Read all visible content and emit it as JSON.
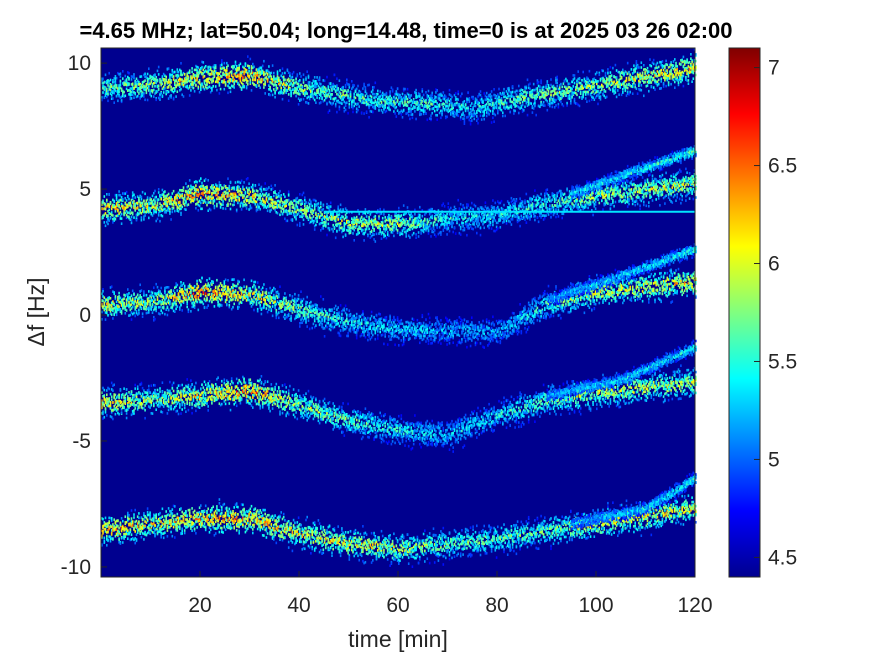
{
  "chart_data": {
    "type": "heatmap",
    "title": "=4.65 MHz;  lat=50.04; long=14.48, time=0 is at 2025 03 26 02:00",
    "xlabel": "time [min]",
    "ylabel": "Δf [Hz]",
    "xlim": [
      0,
      120
    ],
    "ylim": [
      -10.4,
      10.6
    ],
    "x_ticks": [
      20,
      40,
      60,
      80,
      100,
      120
    ],
    "y_ticks": [
      -10,
      -5,
      0,
      5,
      10
    ],
    "y_tick_labels": [
      "-10",
      "-5",
      "0",
      "5",
      "10"
    ],
    "colorbar": {
      "range": [
        4.4,
        7.1
      ],
      "ticks": [
        4.5,
        5,
        5.5,
        6,
        6.5,
        7
      ],
      "tick_labels": [
        "4.5",
        "5",
        "5.5",
        "6",
        "6.5",
        "7"
      ],
      "colormap": "jet"
    },
    "background_color": "#00008f",
    "grid": false,
    "traces": [
      {
        "name": "",
        "t": [
          0,
          10,
          20,
          30,
          40,
          55,
          65,
          75,
          85,
          100,
          120
        ],
        "f": [
          9.0,
          9.1,
          9.4,
          9.5,
          9.0,
          8.5,
          8.4,
          8.2,
          8.6,
          9.1,
          9.8
        ],
        "strength": [
          0.55,
          0.6,
          0.75,
          0.8,
          0.6,
          0.5,
          0.5,
          0.45,
          0.55,
          0.6,
          0.75
        ]
      },
      {
        "name": "",
        "t": [
          0,
          10,
          20,
          30,
          40,
          50,
          60,
          70,
          80,
          90,
          100,
          120
        ],
        "f": [
          4.2,
          4.3,
          4.8,
          4.7,
          4.2,
          3.6,
          3.6,
          3.8,
          3.9,
          4.4,
          4.7,
          5.2
        ],
        "strength": [
          0.75,
          0.65,
          0.85,
          0.7,
          0.6,
          0.65,
          0.6,
          0.45,
          0.45,
          0.5,
          0.6,
          0.65
        ]
      },
      {
        "name": "",
        "t": [
          0,
          10,
          20,
          30,
          40,
          50,
          60,
          80,
          90,
          100,
          120
        ],
        "f": [
          0.4,
          0.5,
          0.9,
          0.8,
          0.2,
          -0.3,
          -0.6,
          -0.7,
          0.4,
          0.9,
          1.3
        ],
        "strength": [
          0.7,
          0.6,
          0.85,
          0.7,
          0.55,
          0.45,
          0.4,
          0.35,
          0.5,
          0.65,
          0.75
        ]
      },
      {
        "name": "",
        "t": [
          0,
          10,
          20,
          30,
          40,
          50,
          60,
          70,
          80,
          90,
          100,
          120
        ],
        "f": [
          -3.5,
          -3.4,
          -3.2,
          -3.0,
          -3.6,
          -4.2,
          -4.6,
          -4.8,
          -4.0,
          -3.4,
          -3.1,
          -2.7
        ],
        "strength": [
          0.75,
          0.6,
          0.7,
          0.85,
          0.6,
          0.55,
          0.45,
          0.4,
          0.45,
          0.55,
          0.65,
          0.65
        ]
      },
      {
        "name": "",
        "t": [
          0,
          10,
          20,
          30,
          40,
          50,
          60,
          70,
          80,
          90,
          100,
          120
        ],
        "f": [
          -8.6,
          -8.3,
          -8.1,
          -8.1,
          -8.7,
          -9.1,
          -9.3,
          -9.1,
          -8.9,
          -8.6,
          -8.3,
          -7.7
        ],
        "strength": [
          0.8,
          0.7,
          0.75,
          0.8,
          0.7,
          0.7,
          0.65,
          0.55,
          0.55,
          0.55,
          0.7,
          0.7
        ]
      }
    ],
    "secondary_traces": [
      {
        "t": [
          95,
          105,
          120
        ],
        "f": [
          4.8,
          5.5,
          6.5
        ],
        "strength": [
          0.4,
          0.45,
          0.5
        ]
      },
      {
        "t": [
          90,
          100,
          120
        ],
        "f": [
          0.6,
          1.2,
          2.6
        ],
        "strength": [
          0.35,
          0.4,
          0.45
        ]
      },
      {
        "t": [
          90,
          105,
          120
        ],
        "f": [
          -3.2,
          -2.6,
          -1.3
        ],
        "strength": [
          0.35,
          0.4,
          0.45
        ]
      },
      {
        "t": [
          95,
          110,
          120
        ],
        "f": [
          -8.3,
          -7.7,
          -6.5
        ],
        "strength": [
          0.35,
          0.4,
          0.45
        ]
      }
    ],
    "horizontal_line": {
      "f": 4.1,
      "t_range": [
        45,
        120
      ],
      "strength": 0.35
    }
  }
}
